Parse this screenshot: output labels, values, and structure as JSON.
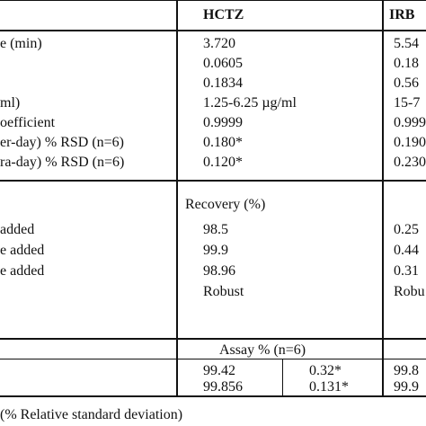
{
  "header": {
    "col_hctz": "HCTZ",
    "col_irb": "IRB"
  },
  "rows": [
    {
      "label": "e (min)",
      "hctz": "3.720",
      "irb": "5.54"
    },
    {
      "label": "",
      "hctz": "0.0605",
      "irb": "0.18"
    },
    {
      "label": "",
      "hctz": "0.1834",
      "irb": "0.56"
    },
    {
      "label": "ml)",
      "hctz": "1.25-6.25 µg/ml",
      "irb": "15-7"
    },
    {
      "label": "oefficient",
      "hctz": "0.9999",
      "irb": "0.999"
    },
    {
      "label": "er-day) % RSD  (n=6)",
      "hctz": "0.180*",
      "irb": "0.190"
    },
    {
      "label": "ra-day) % RSD  (n=6)",
      "hctz": "0.120*",
      "irb": "0.230"
    }
  ],
  "recovery": {
    "title": "Recovery  (%)",
    "rows": [
      {
        "label": " added",
        "hctz": "98.5",
        "irb": "0.25"
      },
      {
        "label": "e added",
        "hctz": "99.9",
        "irb": "0.44"
      },
      {
        "label": "e added",
        "hctz": "98.96",
        "irb": "0.31"
      },
      {
        "label": "",
        "hctz": "Robust",
        "irb": "Robu"
      }
    ]
  },
  "assay": {
    "title": "Assay % (n=6)",
    "rows": [
      {
        "value": "99.42",
        "rsd": "0.32*",
        "irb": "99.8"
      },
      {
        "value": "99.856",
        "rsd": "0.131*",
        "irb": "99.9"
      }
    ]
  },
  "footnote": "(% Relative standard deviation)"
}
